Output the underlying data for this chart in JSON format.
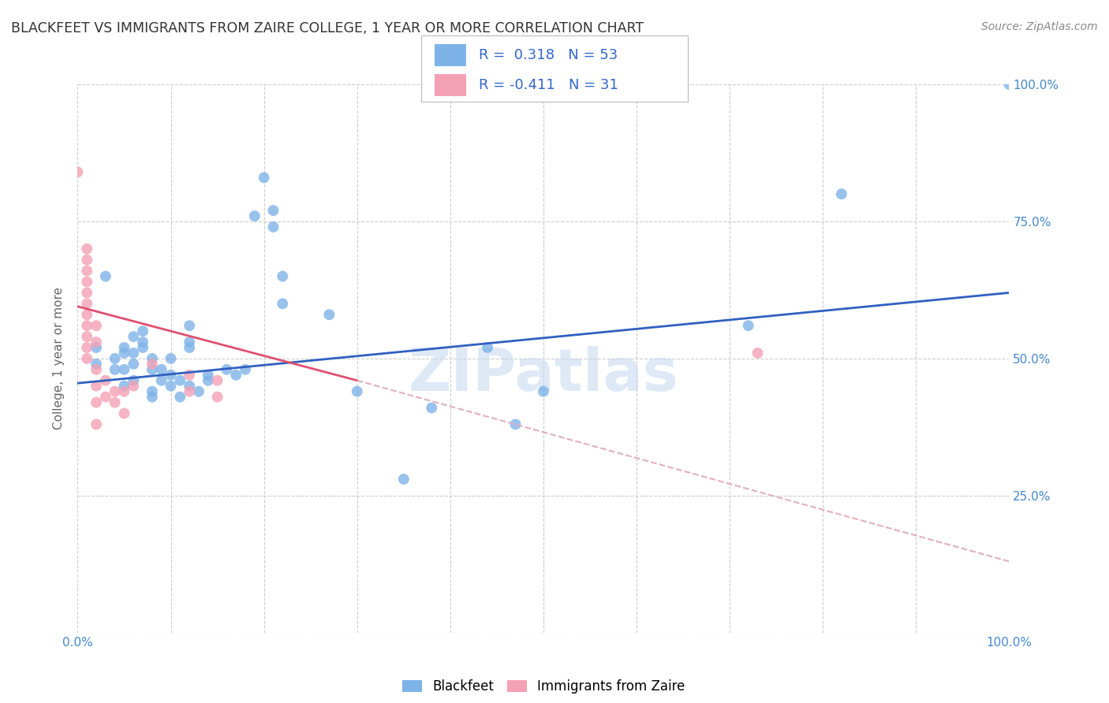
{
  "title": "BLACKFEET VS IMMIGRANTS FROM ZAIRE COLLEGE, 1 YEAR OR MORE CORRELATION CHART",
  "source": "Source: ZipAtlas.com",
  "ylabel": "College, 1 year or more",
  "xlim": [
    0,
    1
  ],
  "ylim": [
    0,
    1
  ],
  "watermark": "ZIPatlas",
  "legend": {
    "blue_label": "Blackfeet",
    "pink_label": "Immigrants from Zaire",
    "blue_R": "R =  0.318",
    "blue_N": "N = 53",
    "pink_R": "R = -0.411",
    "pink_N": "N = 31"
  },
  "blue_color": "#7eb3e8",
  "pink_color": "#f4a0b5",
  "blue_line_color": "#3060c0",
  "pink_line_color": "#e05070",
  "pink_line_dashed_color": "#e0b0bb",
  "background_color": "#ffffff",
  "grid_color": "#cccccc",
  "blue_scatter": [
    [
      0.02,
      0.49
    ],
    [
      0.02,
      0.52
    ],
    [
      0.03,
      0.65
    ],
    [
      0.04,
      0.48
    ],
    [
      0.04,
      0.5
    ],
    [
      0.05,
      0.51
    ],
    [
      0.05,
      0.48
    ],
    [
      0.05,
      0.52
    ],
    [
      0.05,
      0.45
    ],
    [
      0.06,
      0.54
    ],
    [
      0.06,
      0.49
    ],
    [
      0.06,
      0.51
    ],
    [
      0.06,
      0.46
    ],
    [
      0.07,
      0.52
    ],
    [
      0.07,
      0.55
    ],
    [
      0.07,
      0.53
    ],
    [
      0.08,
      0.44
    ],
    [
      0.08,
      0.48
    ],
    [
      0.08,
      0.5
    ],
    [
      0.08,
      0.43
    ],
    [
      0.09,
      0.46
    ],
    [
      0.09,
      0.48
    ],
    [
      0.1,
      0.45
    ],
    [
      0.1,
      0.47
    ],
    [
      0.1,
      0.5
    ],
    [
      0.11,
      0.43
    ],
    [
      0.11,
      0.46
    ],
    [
      0.12,
      0.52
    ],
    [
      0.12,
      0.53
    ],
    [
      0.12,
      0.56
    ],
    [
      0.12,
      0.45
    ],
    [
      0.13,
      0.44
    ],
    [
      0.14,
      0.47
    ],
    [
      0.14,
      0.46
    ],
    [
      0.16,
      0.48
    ],
    [
      0.17,
      0.47
    ],
    [
      0.18,
      0.48
    ],
    [
      0.19,
      0.76
    ],
    [
      0.2,
      0.83
    ],
    [
      0.21,
      0.77
    ],
    [
      0.21,
      0.74
    ],
    [
      0.22,
      0.65
    ],
    [
      0.22,
      0.6
    ],
    [
      0.27,
      0.58
    ],
    [
      0.3,
      0.44
    ],
    [
      0.35,
      0.28
    ],
    [
      0.38,
      0.41
    ],
    [
      0.44,
      0.52
    ],
    [
      0.47,
      0.38
    ],
    [
      0.5,
      0.44
    ],
    [
      0.72,
      0.56
    ],
    [
      0.82,
      0.8
    ],
    [
      1.0,
      1.0
    ]
  ],
  "pink_scatter": [
    [
      0.0,
      0.84
    ],
    [
      0.01,
      0.7
    ],
    [
      0.01,
      0.68
    ],
    [
      0.01,
      0.66
    ],
    [
      0.01,
      0.64
    ],
    [
      0.01,
      0.62
    ],
    [
      0.01,
      0.6
    ],
    [
      0.01,
      0.58
    ],
    [
      0.01,
      0.56
    ],
    [
      0.01,
      0.54
    ],
    [
      0.01,
      0.52
    ],
    [
      0.01,
      0.5
    ],
    [
      0.02,
      0.56
    ],
    [
      0.02,
      0.53
    ],
    [
      0.02,
      0.48
    ],
    [
      0.02,
      0.45
    ],
    [
      0.02,
      0.42
    ],
    [
      0.02,
      0.38
    ],
    [
      0.03,
      0.43
    ],
    [
      0.03,
      0.46
    ],
    [
      0.04,
      0.42
    ],
    [
      0.04,
      0.44
    ],
    [
      0.05,
      0.44
    ],
    [
      0.05,
      0.4
    ],
    [
      0.06,
      0.45
    ],
    [
      0.08,
      0.49
    ],
    [
      0.12,
      0.47
    ],
    [
      0.12,
      0.44
    ],
    [
      0.15,
      0.46
    ],
    [
      0.15,
      0.43
    ],
    [
      0.73,
      0.51
    ]
  ],
  "blue_trendline": {
    "x_start": 0.0,
    "y_start": 0.455,
    "x_end": 1.0,
    "y_end": 0.62
  },
  "pink_trendline_solid": {
    "x_start": 0.0,
    "y_start": 0.595,
    "x_end": 0.3,
    "y_end": 0.46
  },
  "pink_trendline_dashed": {
    "x_start": 0.3,
    "y_start": 0.46,
    "x_end": 1.0,
    "y_end": 0.13
  }
}
